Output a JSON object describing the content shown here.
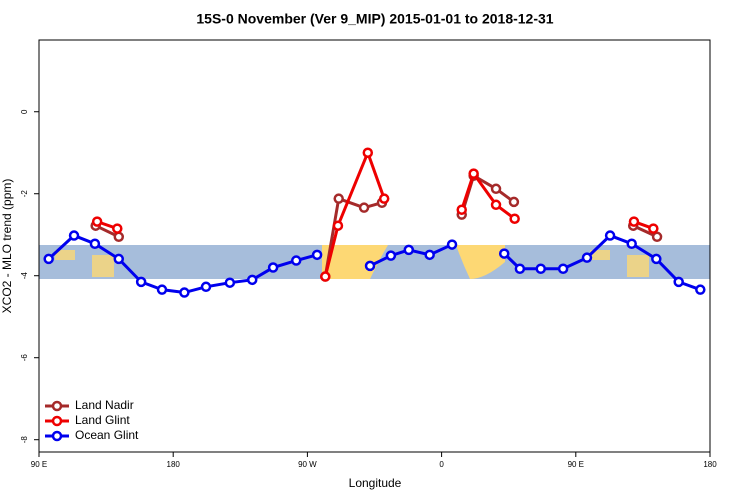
{
  "chart_data": {
    "type": "line",
    "title": "15S-0 November (Ver 9_MIP)   2015-01-01 to 2018-12-31",
    "x_label": "Longitude",
    "y_label": "XCO2 - MLO trend (ppm)",
    "xlim": [
      90,
      540
    ],
    "ylim": [
      -8.3,
      1.75
    ],
    "xticks": [
      {
        "value": 90,
        "label": "90 E"
      },
      180,
      {
        "value": 270,
        "label": "90 W"
      },
      {
        "value": 360,
        "label": "0"
      },
      {
        "value": 450,
        "label": "90 E"
      },
      {
        "value": 540,
        "label": "180"
      }
    ],
    "yticks": [
      0,
      -2,
      -4,
      -6,
      -8
    ],
    "legend": "bottom-left",
    "series": [
      {
        "name": "Land Nadir",
        "color": "#a52a2a",
        "x": [
          128,
          143.5,
          null,
          282,
          291,
          308,
          320,
          null,
          373.5,
          381.5,
          396.5,
          408.5,
          null,
          488.5,
          504.5
        ],
        "values": [
          -2.78,
          -3.05,
          null,
          -4.02,
          -2.12,
          -2.34,
          -2.22,
          null,
          -2.51,
          -1.56,
          -1.88,
          -2.2,
          null,
          -2.78,
          -3.05
        ]
      },
      {
        "name": "Land Glint",
        "color": "#ee0000",
        "x": [
          129,
          142.5,
          null,
          282,
          290.5,
          310.5,
          321.5,
          null,
          373.5,
          381.5,
          396.5,
          409,
          null,
          489,
          502
        ],
        "values": [
          -2.68,
          -2.85,
          null,
          -4.02,
          -2.78,
          -1.0,
          -2.12,
          null,
          -2.39,
          -1.51,
          -2.27,
          -2.61,
          null,
          -2.68,
          -2.85
        ]
      },
      {
        "name": "Ocean Glint",
        "color": "#0000ee",
        "x": [
          96.5,
          113.5,
          127.5,
          143.5,
          158.5,
          172.5,
          187.5,
          202,
          218,
          233,
          247,
          262.5,
          276.5,
          null,
          312,
          326,
          338,
          352,
          367,
          null,
          402,
          412.5,
          426.5,
          441.5,
          457.5,
          473,
          487.5,
          504,
          519,
          533.5
        ],
        "values": [
          -3.59,
          -3.02,
          -3.22,
          -3.59,
          -4.15,
          -4.34,
          -4.41,
          -4.27,
          -4.17,
          -4.1,
          -3.8,
          -3.63,
          -3.49,
          null,
          -3.76,
          -3.51,
          -3.37,
          -3.49,
          -3.24,
          null,
          -3.46,
          -3.83,
          -3.83,
          -3.83,
          -3.56,
          -3.02,
          -3.22,
          -3.59,
          -4.15,
          -4.34
        ]
      }
    ]
  }
}
